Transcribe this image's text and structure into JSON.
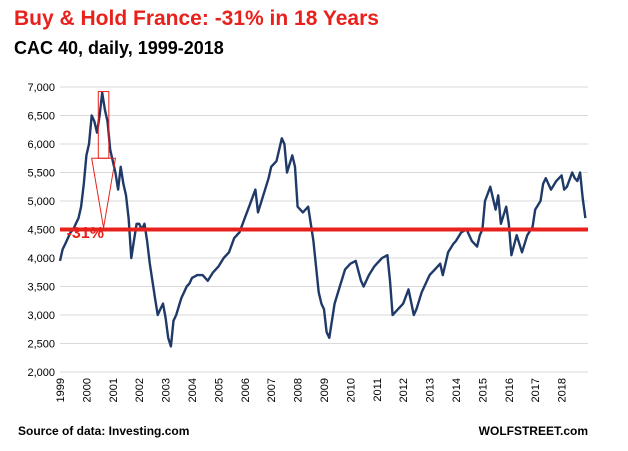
{
  "header": {
    "title": "Buy & Hold France: -31% in 18 Years",
    "subtitle": "CAC 40, daily, 1999-2018"
  },
  "footer": {
    "source": "Source of data: Investing.com",
    "brand": "WOLFSTREET.com"
  },
  "colors": {
    "series": "#1f3a68",
    "accent": "#e8211d",
    "grid": "#d9d9d9",
    "text": "#000000"
  },
  "chart_data": {
    "type": "line",
    "title": "Buy & Hold France: -31% in 18 Years",
    "subtitle": "CAC 40, daily, 1999-2018",
    "xlabel": "",
    "ylabel": "",
    "x_ticks": [
      "1999",
      "2000",
      "2001",
      "2002",
      "2003",
      "2004",
      "2005",
      "2006",
      "2007",
      "2008",
      "2009",
      "2010",
      "2011",
      "2012",
      "2013",
      "2014",
      "2015",
      "2016",
      "2017",
      "2018"
    ],
    "y_ticks": [
      "2,000",
      "2,500",
      "3,000",
      "3,500",
      "4,000",
      "4,500",
      "5,000",
      "5,500",
      "6,000",
      "6,500",
      "7,000"
    ],
    "xlim": [
      1999,
      2019
    ],
    "ylim": [
      2000,
      7000
    ],
    "grid": "horizontal",
    "series": [
      {
        "values": [
          [
            1999.0,
            3950
          ],
          [
            1999.1,
            4150
          ],
          [
            1999.2,
            4250
          ],
          [
            1999.3,
            4350
          ],
          [
            1999.4,
            4450
          ],
          [
            1999.5,
            4500
          ],
          [
            1999.6,
            4600
          ],
          [
            1999.7,
            4700
          ],
          [
            1999.8,
            4900
          ],
          [
            1999.9,
            5300
          ],
          [
            2000.0,
            5800
          ],
          [
            2000.1,
            6000
          ],
          [
            2000.2,
            6500
          ],
          [
            2000.3,
            6400
          ],
          [
            2000.4,
            6200
          ],
          [
            2000.5,
            6500
          ],
          [
            2000.6,
            6900
          ],
          [
            2000.7,
            6600
          ],
          [
            2000.8,
            6400
          ],
          [
            2000.9,
            5900
          ],
          [
            2001.0,
            5700
          ],
          [
            2001.1,
            5500
          ],
          [
            2001.2,
            5200
          ],
          [
            2001.3,
            5600
          ],
          [
            2001.4,
            5300
          ],
          [
            2001.5,
            5100
          ],
          [
            2001.6,
            4700
          ],
          [
            2001.7,
            4000
          ],
          [
            2001.8,
            4300
          ],
          [
            2001.9,
            4600
          ],
          [
            2002.0,
            4600
          ],
          [
            2002.1,
            4500
          ],
          [
            2002.2,
            4600
          ],
          [
            2002.3,
            4300
          ],
          [
            2002.4,
            3900
          ],
          [
            2002.5,
            3600
          ],
          [
            2002.6,
            3300
          ],
          [
            2002.7,
            3000
          ],
          [
            2002.8,
            3100
          ],
          [
            2002.9,
            3200
          ],
          [
            2003.0,
            2950
          ],
          [
            2003.1,
            2600
          ],
          [
            2003.2,
            2450
          ],
          [
            2003.3,
            2900
          ],
          [
            2003.4,
            3000
          ],
          [
            2003.5,
            3150
          ],
          [
            2003.6,
            3300
          ],
          [
            2003.7,
            3400
          ],
          [
            2003.8,
            3500
          ],
          [
            2003.9,
            3550
          ],
          [
            2004.0,
            3650
          ],
          [
            2004.2,
            3700
          ],
          [
            2004.4,
            3700
          ],
          [
            2004.6,
            3600
          ],
          [
            2004.8,
            3750
          ],
          [
            2005.0,
            3850
          ],
          [
            2005.2,
            4000
          ],
          [
            2005.4,
            4100
          ],
          [
            2005.6,
            4350
          ],
          [
            2005.8,
            4450
          ],
          [
            2006.0,
            4700
          ],
          [
            2006.2,
            4950
          ],
          [
            2006.4,
            5200
          ],
          [
            2006.5,
            4800
          ],
          [
            2006.7,
            5100
          ],
          [
            2006.9,
            5400
          ],
          [
            2007.0,
            5600
          ],
          [
            2007.2,
            5700
          ],
          [
            2007.4,
            6100
          ],
          [
            2007.5,
            6000
          ],
          [
            2007.6,
            5500
          ],
          [
            2007.8,
            5800
          ],
          [
            2007.9,
            5600
          ],
          [
            2008.0,
            4900
          ],
          [
            2008.2,
            4800
          ],
          [
            2008.4,
            4900
          ],
          [
            2008.6,
            4300
          ],
          [
            2008.8,
            3400
          ],
          [
            2008.9,
            3200
          ],
          [
            2009.0,
            3100
          ],
          [
            2009.1,
            2700
          ],
          [
            2009.2,
            2600
          ],
          [
            2009.4,
            3200
          ],
          [
            2009.6,
            3500
          ],
          [
            2009.8,
            3800
          ],
          [
            2010.0,
            3900
          ],
          [
            2010.2,
            3950
          ],
          [
            2010.4,
            3600
          ],
          [
            2010.5,
            3500
          ],
          [
            2010.7,
            3700
          ],
          [
            2010.9,
            3850
          ],
          [
            2011.0,
            3900
          ],
          [
            2011.2,
            4000
          ],
          [
            2011.4,
            4050
          ],
          [
            2011.5,
            3600
          ],
          [
            2011.6,
            3000
          ],
          [
            2011.8,
            3100
          ],
          [
            2011.9,
            3150
          ],
          [
            2012.0,
            3200
          ],
          [
            2012.2,
            3450
          ],
          [
            2012.4,
            3000
          ],
          [
            2012.5,
            3100
          ],
          [
            2012.7,
            3400
          ],
          [
            2012.9,
            3600
          ],
          [
            2013.0,
            3700
          ],
          [
            2013.2,
            3800
          ],
          [
            2013.4,
            3900
          ],
          [
            2013.5,
            3700
          ],
          [
            2013.7,
            4100
          ],
          [
            2013.9,
            4250
          ],
          [
            2014.0,
            4300
          ],
          [
            2014.2,
            4450
          ],
          [
            2014.4,
            4500
          ],
          [
            2014.6,
            4300
          ],
          [
            2014.8,
            4200
          ],
          [
            2014.9,
            4400
          ],
          [
            2015.0,
            4500
          ],
          [
            2015.1,
            5000
          ],
          [
            2015.3,
            5250
          ],
          [
            2015.5,
            4850
          ],
          [
            2015.6,
            5100
          ],
          [
            2015.7,
            4600
          ],
          [
            2015.9,
            4900
          ],
          [
            2016.0,
            4600
          ],
          [
            2016.1,
            4050
          ],
          [
            2016.3,
            4400
          ],
          [
            2016.5,
            4100
          ],
          [
            2016.7,
            4400
          ],
          [
            2016.9,
            4550
          ],
          [
            2017.0,
            4850
          ],
          [
            2017.2,
            5000
          ],
          [
            2017.3,
            5300
          ],
          [
            2017.4,
            5400
          ],
          [
            2017.6,
            5200
          ],
          [
            2017.8,
            5350
          ],
          [
            2017.9,
            5400
          ],
          [
            2018.0,
            5450
          ],
          [
            2018.1,
            5200
          ],
          [
            2018.2,
            5250
          ],
          [
            2018.4,
            5500
          ],
          [
            2018.5,
            5400
          ],
          [
            2018.6,
            5350
          ],
          [
            2018.7,
            5500
          ],
          [
            2018.8,
            5050
          ],
          [
            2018.9,
            4700
          ]
        ]
      }
    ],
    "annotations": [
      {
        "text": "-31%",
        "color": "#e8211d"
      }
    ],
    "reference_line": {
      "y": 4500,
      "color": "#e8211d"
    }
  }
}
